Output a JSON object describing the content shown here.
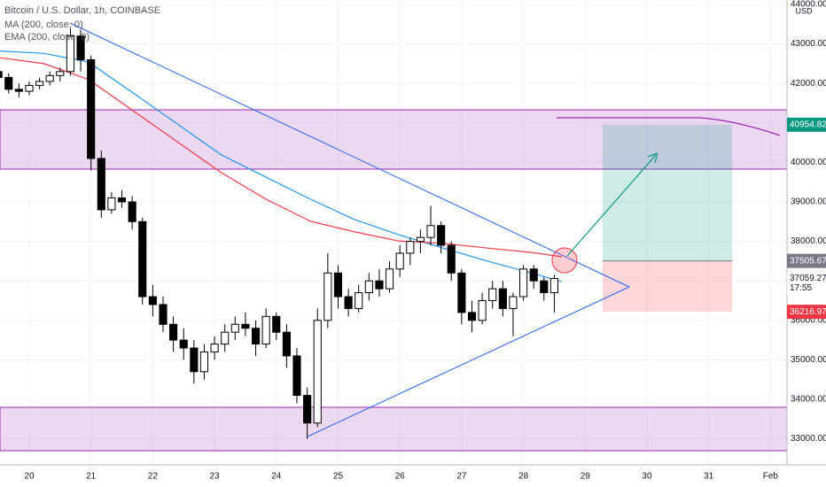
{
  "chart_data": {
    "type": "candlestick",
    "title": "Bitcoin / U.S. Dollar, 1h, COINBASE",
    "currency": "USD",
    "grid": true,
    "up_color": "#ffffff",
    "down_color": "#000000",
    "xlim": [
      19.527,
      32.267
    ],
    "ylim": [
      32341,
      44112
    ],
    "xticks": [
      20,
      21,
      22,
      23,
      24,
      25,
      26,
      27,
      28,
      29,
      30,
      31,
      {
        "value": 32,
        "label": "Feb"
      }
    ],
    "yticks": [
      {
        "value": 33000,
        "label": "33000.00"
      },
      {
        "value": 34000,
        "label": "34000.00"
      },
      {
        "value": 35000,
        "label": "35000.00"
      },
      {
        "value": 36000,
        "label": "36000.00"
      },
      {
        "value": 37000,
        "label": "37000.00"
      },
      {
        "value": 38000,
        "label": "38000.00"
      },
      {
        "value": 39000,
        "label": "39000.00"
      },
      {
        "value": 40000,
        "label": "40000.00"
      },
      {
        "value": 41000,
        "label": "41000.00"
      },
      {
        "value": 42000,
        "label": "42000.00"
      },
      {
        "value": 43000,
        "label": "43000.00"
      },
      {
        "value": 44000,
        "label": "44000.00"
      }
    ],
    "x": [
      19.5,
      19.667,
      19.833,
      20,
      20.167,
      20.333,
      20.5,
      20.667,
      20.833,
      21,
      21.167,
      21.333,
      21.5,
      21.667,
      21.833,
      22,
      22.167,
      22.333,
      22.5,
      22.667,
      22.833,
      23,
      23.167,
      23.333,
      23.5,
      23.667,
      23.833,
      24,
      24.167,
      24.333,
      24.5,
      24.667,
      24.833,
      25,
      25.167,
      25.333,
      25.5,
      25.667,
      25.833,
      26,
      26.167,
      26.333,
      26.5,
      26.667,
      26.833,
      27,
      27.167,
      27.333,
      27.5,
      27.667,
      27.833,
      28,
      28.167,
      28.333,
      28.5
    ],
    "open": [
      42300,
      42150,
      41850,
      41800,
      41950,
      42050,
      42200,
      42300,
      43200,
      42600,
      40100,
      38800,
      39100,
      39000,
      38500,
      36600,
      36400,
      35900,
      35500,
      35300,
      34700,
      35200,
      35400,
      35700,
      35900,
      35800,
      35400,
      36100,
      35700,
      35100,
      34100,
      33400,
      36000,
      37200,
      36600,
      36300,
      36700,
      37000,
      36800,
      37300,
      37700,
      38000,
      38100,
      38400,
      37900,
      37200,
      36200,
      36000,
      36500,
      36800,
      36300,
      36600,
      37300,
      37000,
      36700
    ],
    "high": [
      42450,
      42250,
      42000,
      42050,
      42150,
      42300,
      42400,
      43400,
      43350,
      42700,
      40300,
      39250,
      39300,
      39150,
      38600,
      36900,
      36600,
      36100,
      35800,
      35500,
      35400,
      35600,
      35900,
      36100,
      36200,
      36000,
      36300,
      36200,
      35900,
      35300,
      34300,
      36300,
      37700,
      37400,
      36800,
      36900,
      37200,
      37300,
      37500,
      37900,
      38100,
      38300,
      38900,
      38500,
      38000,
      37300,
      36500,
      36700,
      37000,
      37000,
      36700,
      37400,
      37400,
      37100,
      37150
    ],
    "low": [
      42050,
      41750,
      41650,
      41700,
      41850,
      41950,
      42050,
      42200,
      42300,
      39800,
      38600,
      38700,
      38850,
      38300,
      36400,
      36100,
      35700,
      35200,
      35000,
      34400,
      34500,
      35000,
      35200,
      35500,
      35600,
      35100,
      35300,
      35500,
      34800,
      33900,
      33000,
      33300,
      35800,
      36300,
      36100,
      36200,
      36500,
      36600,
      36700,
      37100,
      37400,
      37700,
      37900,
      37700,
      37000,
      35900,
      35700,
      35900,
      36300,
      36100,
      35600,
      36500,
      36800,
      36500,
      36200
    ],
    "close": [
      42150,
      41850,
      41800,
      41950,
      42050,
      42200,
      42300,
      43200,
      42600,
      40100,
      38800,
      39100,
      39000,
      38500,
      36600,
      36400,
      35900,
      35500,
      35300,
      34700,
      35200,
      35400,
      35700,
      35900,
      35800,
      35400,
      36100,
      35700,
      35100,
      34100,
      33400,
      36000,
      37200,
      36600,
      36300,
      36700,
      37000,
      36800,
      37300,
      37700,
      38000,
      38100,
      38400,
      37900,
      37200,
      36200,
      36000,
      36500,
      36800,
      36300,
      36600,
      37300,
      37000,
      36700,
      37059.27
    ],
    "countdown": "17:55",
    "indicators": [
      {
        "name": "MA (200, close, 0)",
        "color": "#2196f3",
        "x": [
          19.53,
          20.24,
          20.96,
          21.68,
          22.4,
          23.11,
          23.83,
          24.55,
          25.27,
          25.98,
          26.7,
          27.42,
          28.13,
          28.62
        ],
        "values": [
          42820,
          42760,
          42540,
          41760,
          40970,
          40190,
          39630,
          39070,
          38550,
          38170,
          37830,
          37500,
          37200,
          36980
        ]
      },
      {
        "name": "EMA (200, close, 0)",
        "color": "#f23645",
        "x": [
          19.53,
          20.24,
          20.96,
          21.68,
          22.4,
          23.11,
          23.83,
          24.55,
          25.27,
          25.98,
          26.7,
          27.42,
          28.13,
          28.62
        ],
        "values": [
          42650,
          42500,
          42100,
          41310,
          40520,
          39740,
          39070,
          38510,
          38240,
          38010,
          37950,
          37830,
          37720,
          37610
        ]
      }
    ],
    "position": {
      "x": [
        29.28,
        31.38
      ],
      "target": 40954.82,
      "entry": 37505.67,
      "stop": 36216.97
    }
  }
}
